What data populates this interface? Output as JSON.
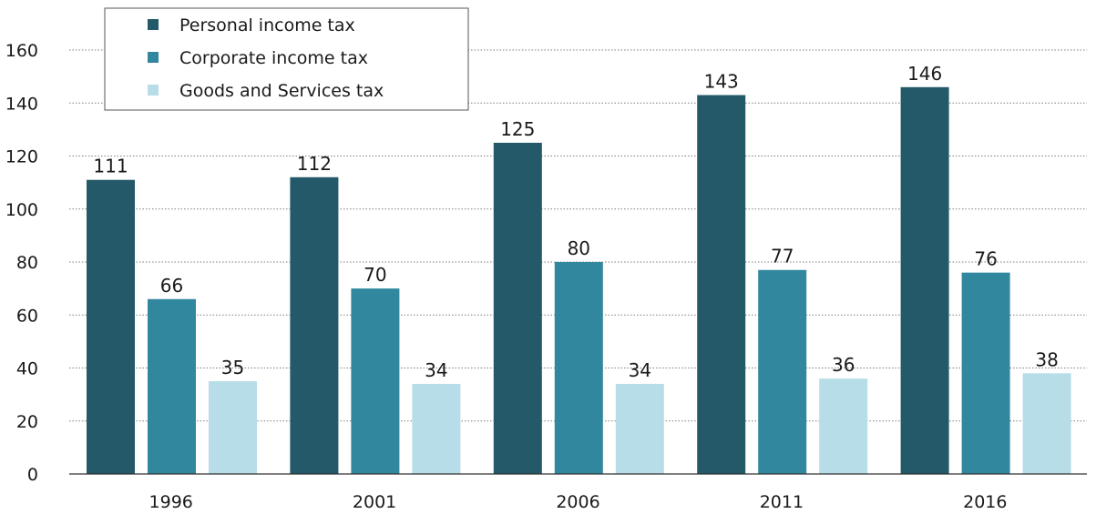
{
  "chart_data": {
    "type": "bar",
    "categories": [
      "1996",
      "2001",
      "2006",
      "2011",
      "2016"
    ],
    "series": [
      {
        "name": "Personal income tax",
        "color": "#235968",
        "values": [
          111,
          112,
          125,
          143,
          146
        ]
      },
      {
        "name": "Corporate income tax",
        "color": "#31879e",
        "values": [
          66,
          70,
          80,
          77,
          76
        ]
      },
      {
        "name": "Goods and Services tax",
        "color": "#b6dde8",
        "values": [
          35,
          34,
          34,
          36,
          38
        ]
      }
    ],
    "ylim": [
      0,
      160
    ],
    "yticks": [
      0,
      20,
      40,
      60,
      80,
      100,
      120,
      140,
      160
    ],
    "grid": true,
    "grid_style": "dotted",
    "legend_position": "top-left",
    "data_labels": true
  }
}
